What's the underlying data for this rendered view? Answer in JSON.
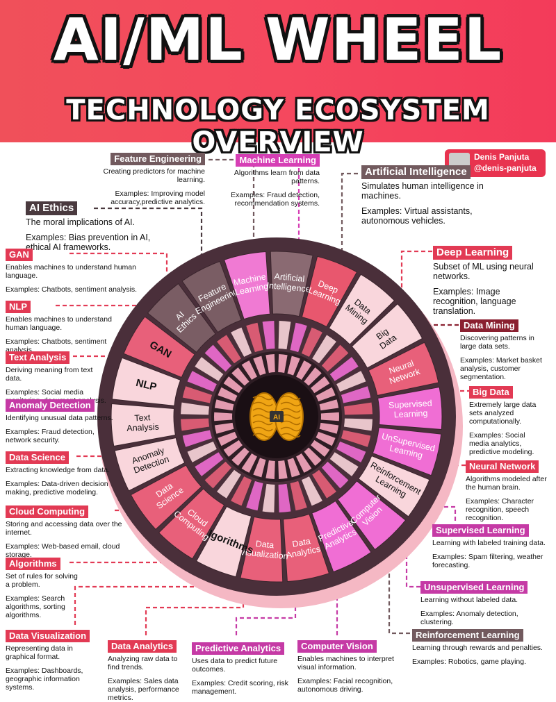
{
  "header": {
    "title": "AI/ML WHEEL",
    "subtitle": "TECHNOLOGY ECOSYSTEM OVERVIEW"
  },
  "author": {
    "name": "Denis Panjuta",
    "handle": "@denis-panjuta"
  },
  "center": {
    "badge": "AI"
  },
  "colors": {
    "header_bg": "#f0505a",
    "wheel_dark": "#4a2f3a",
    "pink_light": "#f7cad5",
    "pink_mid": "#ee6f86",
    "magenta": "#e54ec3",
    "rose": "#d9556b",
    "brown": "#725a5e",
    "gold": "#f0a514"
  },
  "wheel_segments": [
    {
      "name": "AI Ethics",
      "fill": "#7a5d64",
      "text": "#fff"
    },
    {
      "name": "Feature Engineering",
      "fill": "#7a5d64",
      "text": "#fff"
    },
    {
      "name": "Machine Learning",
      "fill": "#f07ad3",
      "text": "#fff"
    },
    {
      "name": "Artificial Intelligence",
      "fill": "#8a6a72",
      "text": "#fff"
    },
    {
      "name": "Deep Learning",
      "fill": "#e8576e",
      "text": "#fff"
    },
    {
      "name": "Data Mining",
      "fill": "#f9d6dc",
      "text": "#111"
    },
    {
      "name": "Big Data",
      "fill": "#f9d6dc",
      "text": "#111"
    },
    {
      "name": "Neural Network",
      "fill": "#e8607a",
      "text": "#fff"
    },
    {
      "name": "Supervised Learning",
      "fill": "#f06ed4",
      "text": "#fff"
    },
    {
      "name": "UnSupervised Learning",
      "fill": "#f06ed4",
      "text": "#fff"
    },
    {
      "name": "Reinforcement Learning",
      "fill": "#f9d6dc",
      "text": "#111"
    },
    {
      "name": "Computer Vision",
      "fill": "#f06ed4",
      "text": "#fff"
    },
    {
      "name": "Predictive Analytics",
      "fill": "#f06ed4",
      "text": "#fff"
    },
    {
      "name": "Data Analytics",
      "fill": "#e8607a",
      "text": "#fff"
    },
    {
      "name": "Data Visualization",
      "fill": "#e8607a",
      "text": "#fff"
    },
    {
      "name": "Algorithms",
      "fill": "#f9d6dc",
      "text": "#111"
    },
    {
      "name": "Cloud Computing",
      "fill": "#e8607a",
      "text": "#fff"
    },
    {
      "name": "Data Science",
      "fill": "#e8607a",
      "text": "#fff"
    },
    {
      "name": "Anomaly Detection",
      "fill": "#f9d6dc",
      "text": "#111"
    },
    {
      "name": "Text Analysis",
      "fill": "#f9d6dc",
      "text": "#111"
    },
    {
      "name": "NLP",
      "fill": "#f9d6dc",
      "text": "#111"
    },
    {
      "name": "GAN",
      "fill": "#e8607a",
      "text": "#111"
    }
  ],
  "cards": {
    "feature_engineering": {
      "label": "Feature Engineering",
      "desc": "Creating predictors for machine learning.",
      "ex": "Examples: Improving model accuracy,predictive analytics.",
      "color": "#725a5e"
    },
    "machine_learning": {
      "label": "Machine Learning",
      "desc": "Algorithms learn from data patterns.",
      "ex": "Examples: Fraud detection, recommendation systems.",
      "color": "#d63fb5"
    },
    "artificial_intelligence": {
      "label": "Artificial Intelligence",
      "desc": "Simulates human intelligence in machines.",
      "ex": "Examples: Virtual assistants, autonomous vehicles.",
      "color": "#725a5e"
    },
    "ai_ethics": {
      "label": "AI Ethics",
      "desc": "The moral implications of AI.",
      "ex": "Examples: Bias prevention in AI, ethical AI frameworks.",
      "color": "#4a3a3f"
    },
    "gan": {
      "label": "GAN",
      "desc": "Enables machines to understand human language.",
      "ex": "Examples: Chatbots, sentiment analysis.",
      "color": "#e23a54"
    },
    "nlp": {
      "label": "NLP",
      "desc": "Enables machines to understand human language.",
      "ex": "Examples: Chatbots, sentiment analysis.",
      "color": "#e23a54"
    },
    "text_analysis": {
      "label": "Text Analysis",
      "desc": "Deriving meaning from text data.",
      "ex": "Examples: Social media monitoring, document analysis.",
      "color": "#e23a54"
    },
    "anomaly_detection": {
      "label": "Anomaly Detection",
      "desc": "Identifying unusual data patterns.",
      "ex": "Examples: Fraud detection, network security.",
      "color": "#c53aa5"
    },
    "data_science": {
      "label": "Data Science",
      "desc": "Extracting knowledge from data.",
      "ex": "Examples: Data-driven decision making, predictive modeling.",
      "color": "#e23a54"
    },
    "cloud_computing": {
      "label": "Cloud Computing",
      "desc": "Storing and accessing data over the internet.",
      "ex": "Examples: Web-based email, cloud storage.",
      "color": "#e23a54"
    },
    "algorithms": {
      "label": "Algorithms",
      "desc": "Set of rules for solving a problem.",
      "ex": "Examples: Search algorithms, sorting algorithms.",
      "color": "#e23a54"
    },
    "data_visualization": {
      "label": "Data Visualization",
      "desc": "Representing data in graphical format.",
      "ex": "Examples: Dashboards, geographic information systems.",
      "color": "#e23a54"
    },
    "data_analytics": {
      "label": "Data Analytics",
      "desc": "Analyzing raw data to find trends.",
      "ex": "Examples: Sales data analysis, performance metrics.",
      "color": "#e23a54"
    },
    "predictive_analytics": {
      "label": "Predictive Analytics",
      "desc": "Uses data to predict future outcomes.",
      "ex": "Examples: Credit scoring, risk management.",
      "color": "#c53aa5"
    },
    "computer_vision": {
      "label": "Computer Vision",
      "desc": "Enables machines to interpret visual information.",
      "ex": "Examples: Facial recognition, autonomous driving.",
      "color": "#c53aa5"
    },
    "reinforcement_learning": {
      "label": "Reinforcement Learning",
      "desc": "Learning through rewards and penalties.",
      "ex": "Examples: Robotics, game playing.",
      "color": "#725a5e"
    },
    "unsupervised_learning": {
      "label": "Unsupervised Learning",
      "desc": "Learning without labeled data.",
      "ex": "Examples: Anomaly detection, clustering.",
      "color": "#c53aa5"
    },
    "supervised_learning": {
      "label": "Supervised Learning",
      "desc": "Learning with labeled training data.",
      "ex": "Examples: Spam filtering, weather forecasting.",
      "color": "#c53aa5"
    },
    "neural_network": {
      "label": "Neural Network",
      "desc": "Algorithms modeled after the human brain.",
      "ex": "Examples: Character recognition, speech recognition.",
      "color": "#e23a54"
    },
    "big_data": {
      "label": "Big Data",
      "desc": "Extremely large data sets analyzed computationally.",
      "ex": "Examples: Social media analytics, predictive modeling.",
      "color": "#e23a54"
    },
    "data_mining": {
      "label": "Data Mining",
      "desc": "Discovering patterns in large data sets.",
      "ex": "Examples: Market basket analysis, customer segmentation.",
      "color": "#8a2030"
    },
    "deep_learning": {
      "label": "Deep Learning",
      "desc": "Subset of ML using neural networks.",
      "ex": "Examples: Image recognition, language translation.",
      "color": "#e23a54"
    }
  }
}
